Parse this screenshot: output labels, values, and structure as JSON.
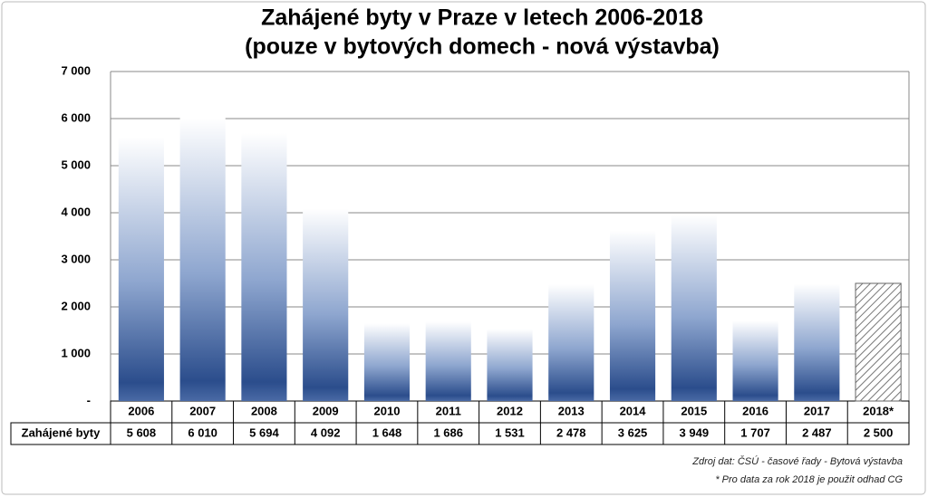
{
  "chart_data": {
    "type": "bar",
    "title": "Zahájené byty v Praze v letech 2006-2018",
    "subtitle": "(pouze v bytových domech - nová výstavba)",
    "categories": [
      "2006",
      "2007",
      "2008",
      "2009",
      "2010",
      "2011",
      "2012",
      "2013",
      "2014",
      "2015",
      "2016",
      "2017",
      "2018*"
    ],
    "series": [
      {
        "name": "Zahájené byty",
        "color": "#2b4d8c",
        "values": [
          5608,
          6010,
          5694,
          4092,
          1648,
          1686,
          1531,
          2478,
          3625,
          3949,
          1707,
          2487,
          2500
        ],
        "value_labels": [
          "5 608",
          "6 010",
          "5 694",
          "4 092",
          "1 648",
          "1 686",
          "1 531",
          "2 478",
          "3 625",
          "3 949",
          "1 707",
          "2 487",
          "2 500"
        ],
        "hatched": [
          false,
          false,
          false,
          false,
          false,
          false,
          false,
          false,
          false,
          false,
          false,
          false,
          true
        ]
      }
    ],
    "ylim": [
      0,
      7000
    ],
    "yticks": [
      {
        "value": 0,
        "label": "-"
      },
      {
        "value": 1000,
        "label": "1 000"
      },
      {
        "value": 2000,
        "label": "2 000"
      },
      {
        "value": 3000,
        "label": "3 000"
      },
      {
        "value": 4000,
        "label": "4 000"
      },
      {
        "value": 5000,
        "label": "5 000"
      },
      {
        "value": 6000,
        "label": "6 000"
      },
      {
        "value": 7000,
        "label": "7 000"
      }
    ],
    "grid": true,
    "notes": [
      "Zdroj dat: ČSÚ - časové řady -  Bytová výstavba",
      "* Pro data za rok 2018 je použit odhad CG"
    ]
  }
}
